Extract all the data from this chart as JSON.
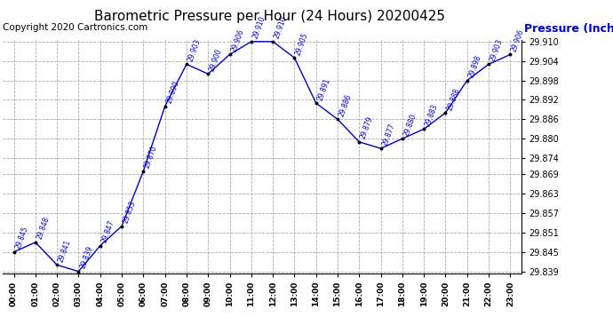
{
  "title": "Barometric Pressure per Hour (24 Hours) 20200425",
  "ylabel": "Pressure (Inches/Hg)",
  "copyright": "Copyright 2020 Cartronics.com",
  "hours": [
    "00:00",
    "01:00",
    "02:00",
    "03:00",
    "04:00",
    "05:00",
    "06:00",
    "07:00",
    "08:00",
    "09:00",
    "10:00",
    "11:00",
    "12:00",
    "13:00",
    "14:00",
    "15:00",
    "16:00",
    "17:00",
    "18:00",
    "19:00",
    "20:00",
    "21:00",
    "22:00",
    "23:00"
  ],
  "values": [
    29.845,
    29.848,
    29.841,
    29.839,
    29.847,
    29.853,
    29.87,
    29.89,
    29.903,
    29.9,
    29.906,
    29.91,
    29.91,
    29.905,
    29.891,
    29.886,
    29.879,
    29.877,
    29.88,
    29.883,
    29.888,
    29.898,
    29.903,
    29.906
  ],
  "ylim_min": 29.839,
  "ylim_max": 29.91,
  "yticks": [
    29.839,
    29.845,
    29.851,
    29.857,
    29.863,
    29.869,
    29.874,
    29.88,
    29.886,
    29.892,
    29.898,
    29.904,
    29.91
  ],
  "line_color": "#0000cc",
  "marker_color": "#000000",
  "label_color": "#0000cc",
  "grid_color": "#aaaaaa",
  "background_color": "#ffffff",
  "title_fontsize": 11,
  "label_fontsize": 7,
  "ylabel_fontsize": 9,
  "copyright_fontsize": 7.5
}
